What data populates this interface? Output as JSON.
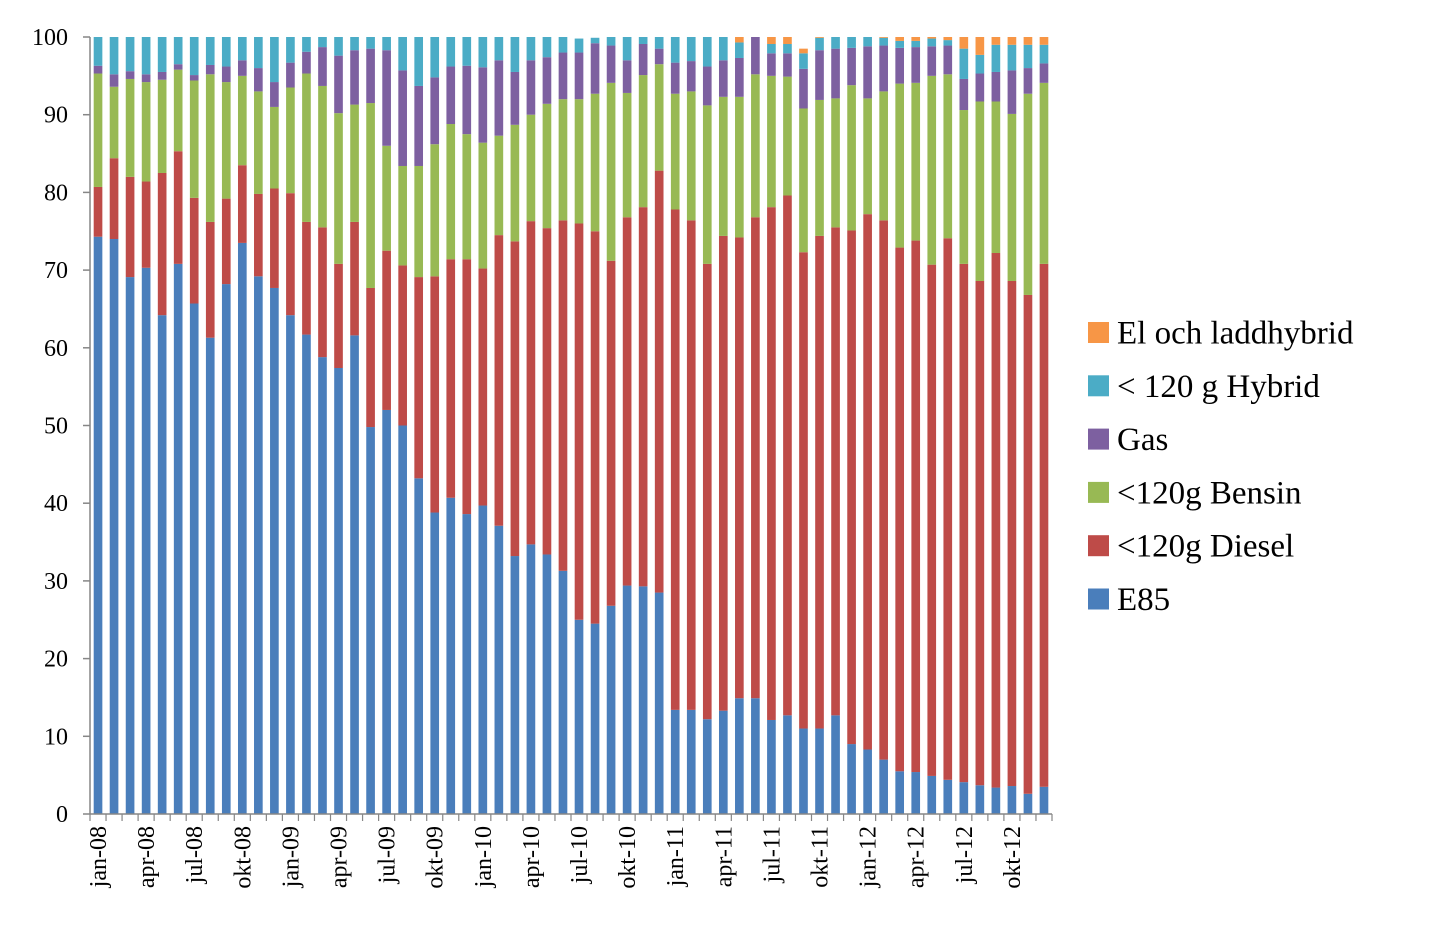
{
  "chart_data": {
    "type": "bar",
    "stacked": true,
    "title": "",
    "xlabel": "",
    "ylabel": "",
    "ylim": [
      0,
      100
    ],
    "yticks": [
      0,
      10,
      20,
      30,
      40,
      50,
      60,
      70,
      80,
      90,
      100
    ],
    "grid": false,
    "legend_position": "right",
    "categories": [
      "jan-08",
      "feb-08",
      "mar-08",
      "apr-08",
      "maj-08",
      "jun-08",
      "jul-08",
      "aug-08",
      "sep-08",
      "okt-08",
      "nov-08",
      "dec-08",
      "jan-09",
      "feb-09",
      "mar-09",
      "apr-09",
      "maj-09",
      "jun-09",
      "jul-09",
      "aug-09",
      "sep-09",
      "okt-09",
      "nov-09",
      "dec-09",
      "jan-10",
      "feb-10",
      "mar-10",
      "apr-10",
      "maj-10",
      "jun-10",
      "jul-10",
      "aug-10",
      "sep-10",
      "okt-10",
      "nov-10",
      "dec-10",
      "jan-11",
      "feb-11",
      "mar-11",
      "apr-11",
      "maj-11",
      "jun-11",
      "jul-11",
      "aug-11",
      "sep-11",
      "okt-11",
      "nov-11",
      "dec-11",
      "jan-12",
      "feb-12",
      "mar-12",
      "apr-12",
      "maj-12",
      "jun-12",
      "jul-12",
      "aug-12",
      "sep-12",
      "okt-12",
      "nov-12",
      "dec-12"
    ],
    "tick_labels": [
      "jan-08",
      "apr-08",
      "jul-08",
      "okt-08",
      "jan-09",
      "apr-09",
      "jul-09",
      "okt-09",
      "jan-10",
      "apr-10",
      "jul-10",
      "okt-10",
      "jan-11",
      "apr-11",
      "jul-11",
      "okt-11",
      "jan-12",
      "apr-12",
      "jul-12",
      "okt-12"
    ],
    "series": [
      {
        "name": "E85",
        "color": "#4A7EBB",
        "values": [
          74.3,
          74,
          69.1,
          70.3,
          64.2,
          70.8,
          65.7,
          61.3,
          68.2,
          73.5,
          69.2,
          67.7,
          64.2,
          61.7,
          58.8,
          57.4,
          61.6,
          49.8,
          52,
          50,
          43.2,
          38.8,
          40.7,
          38.6,
          39.7,
          37.1,
          33.2,
          34.7,
          33.4,
          31.3,
          25,
          24.5,
          26.8,
          29.4,
          29.3,
          28.5,
          13.4,
          13.4,
          12.2,
          13.3,
          14.9,
          14.9,
          12.1,
          12.7,
          11,
          11,
          12.7,
          9,
          8.3,
          7,
          5.5,
          5.4,
          4.9,
          4.4,
          4.1,
          3.7,
          3.4,
          3.6,
          2.6,
          3.5
        ]
      },
      {
        "name": "<120g Diesel",
        "color": "#BE4B48",
        "values": [
          6.4,
          10.4,
          12.9,
          11.1,
          18.3,
          14.5,
          13.6,
          14.9,
          11,
          10,
          10.6,
          12.8,
          15.7,
          14.5,
          16.7,
          13.4,
          14.6,
          17.9,
          20.5,
          20.6,
          25.9,
          30.4,
          30.7,
          32.8,
          30.5,
          37.4,
          40.5,
          41.6,
          42,
          45.1,
          51,
          50.5,
          44.4,
          47.4,
          48.8,
          54.3,
          64.4,
          63,
          58.6,
          61.1,
          59.3,
          61.9,
          66,
          66.9,
          61.3,
          63.4,
          62.8,
          66.1,
          68.9,
          69.4,
          67.4,
          68.4,
          65.8,
          69.7,
          66.7,
          64.9,
          68.8,
          65,
          64.2,
          67.3
        ]
      },
      {
        "name": "<120g Bensin",
        "color": "#98B954",
        "values": [
          14.6,
          9.2,
          12.6,
          12.8,
          12,
          10.5,
          15.1,
          19,
          15,
          11.5,
          13.2,
          10.5,
          13.6,
          19.1,
          18.2,
          19.4,
          15.1,
          23.8,
          13.5,
          12.8,
          14.3,
          17,
          17.4,
          16.1,
          16.2,
          12.8,
          15,
          13.7,
          16,
          15.6,
          16,
          17.7,
          22.9,
          16,
          17,
          13.7,
          14.9,
          16.6,
          20.4,
          17.9,
          18.1,
          18.4,
          16.9,
          15.3,
          18.5,
          17.5,
          16.6,
          18.7,
          14.9,
          16.6,
          21.1,
          20.3,
          24.3,
          21.1,
          19.8,
          23.1,
          19.5,
          21.5,
          25.9,
          23.3
        ]
      },
      {
        "name": "Gas",
        "color": "#7D60A0",
        "values": [
          1,
          1.6,
          1,
          1,
          1,
          0.7,
          0.7,
          1.2,
          2,
          2,
          3,
          3.2,
          3.2,
          2.8,
          5,
          7.4,
          7,
          7,
          12.3,
          12.3,
          10.3,
          8.6,
          7.4,
          8.8,
          9.7,
          9.7,
          6.8,
          7,
          6,
          6,
          6,
          6.5,
          4.8,
          4.2,
          4,
          2,
          4,
          3.9,
          5,
          4.7,
          5,
          4.8,
          2.9,
          3,
          5.1,
          6.4,
          6.4,
          4.8,
          6.7,
          5.9,
          4.6,
          4.6,
          3.8,
          3.7,
          4,
          3.6,
          3.8,
          5.6,
          3.3,
          2.5
        ]
      },
      {
        "name": "< 120 g Hybrid",
        "color": "#4BACC6",
        "values": [
          3.7,
          4.8,
          4.4,
          4.8,
          4.5,
          3.5,
          4.9,
          3.6,
          3.8,
          3,
          4,
          5.8,
          3.3,
          1.9,
          1.3,
          2.4,
          1.7,
          1.5,
          1.7,
          4.3,
          6.3,
          5.2,
          3.8,
          3.7,
          3.9,
          3,
          4.5,
          3,
          2.6,
          2,
          1.8,
          0.7,
          1.1,
          3,
          0.9,
          1.5,
          3.3,
          3.1,
          3.8,
          3,
          2,
          0,
          1.2,
          1.2,
          2,
          1.6,
          1.5,
          1.4,
          1.2,
          1,
          0.9,
          0.8,
          1,
          0.7,
          3.9,
          2.4,
          3.5,
          3.3,
          3,
          2.4
        ]
      },
      {
        "name": "El och laddhybrid",
        "color": "#F79646",
        "values": [
          0,
          0,
          0,
          0,
          0,
          0,
          0,
          0,
          0,
          0,
          0,
          0,
          0,
          0,
          0,
          0,
          0,
          0,
          0,
          0,
          0,
          0,
          0,
          0,
          0,
          0,
          0,
          0,
          0,
          0,
          0,
          0,
          0,
          0,
          0,
          0,
          0,
          0,
          0,
          0,
          0.7,
          0,
          0.9,
          0.9,
          0.6,
          0.1,
          0,
          0,
          0,
          0.1,
          0.5,
          0.5,
          0.3,
          0.4,
          1.5,
          2.3,
          1,
          1,
          1,
          1
        ]
      }
    ],
    "legend_order": [
      "El och laddhybrid",
      "< 120 g Hybrid",
      "Gas",
      "<120g Bensin",
      "<120g Diesel",
      "E85"
    ]
  }
}
